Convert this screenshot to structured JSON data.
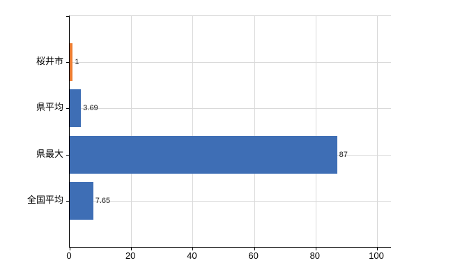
{
  "chart_data": {
    "type": "bar",
    "orientation": "horizontal",
    "title": "",
    "xlabel": "",
    "ylabel": "",
    "categories": [
      "桜井市",
      "県平均",
      "県最大",
      "全国平均"
    ],
    "values": [
      1,
      3.69,
      87,
      7.65
    ],
    "data_labels": [
      "1",
      "3.69",
      "87",
      "7.65"
    ],
    "bar_colors": [
      "#ed7d31",
      "#3e6eb5",
      "#3e6eb5",
      "#3e6eb5"
    ],
    "xlim": [
      0,
      100
    ],
    "x_ticks": [
      0,
      20,
      40,
      60,
      80,
      100
    ],
    "grid": true,
    "gridline_color": "#d9d9d9",
    "axis_color": "#000000",
    "legend": "none",
    "background_color": "#ffffff"
  }
}
